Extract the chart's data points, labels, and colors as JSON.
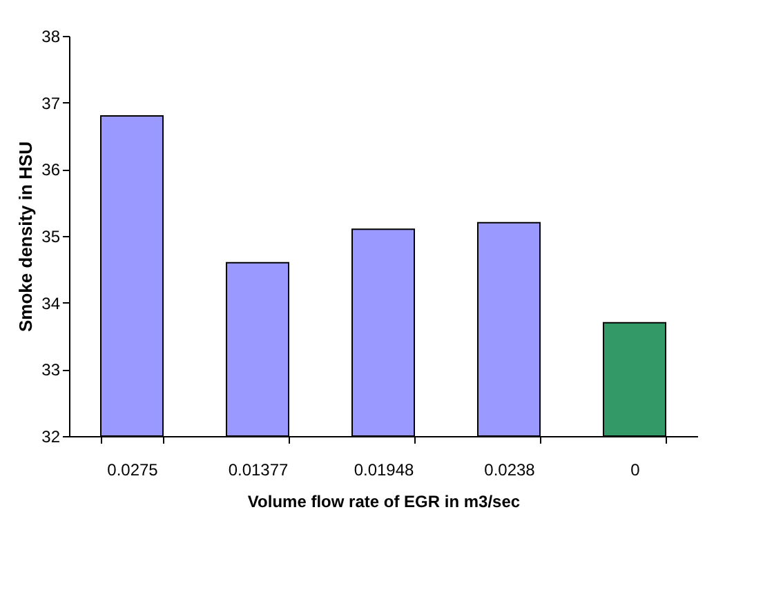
{
  "chart_data": {
    "type": "bar",
    "xlabel": "Volume flow rate of EGR in m3/sec",
    "ylabel": "Smoke density in HSU",
    "categories": [
      "0.0275",
      "0.01377",
      "0.01948",
      "0.0238",
      "0"
    ],
    "values": [
      36.8,
      34.6,
      35.1,
      35.2,
      33.7
    ],
    "colors": [
      "#9999ff",
      "#9999ff",
      "#9999ff",
      "#9999ff",
      "#339966"
    ],
    "ylim": [
      32,
      38
    ],
    "yticks": [
      32,
      33,
      34,
      35,
      36,
      37,
      38
    ],
    "grid": false
  }
}
